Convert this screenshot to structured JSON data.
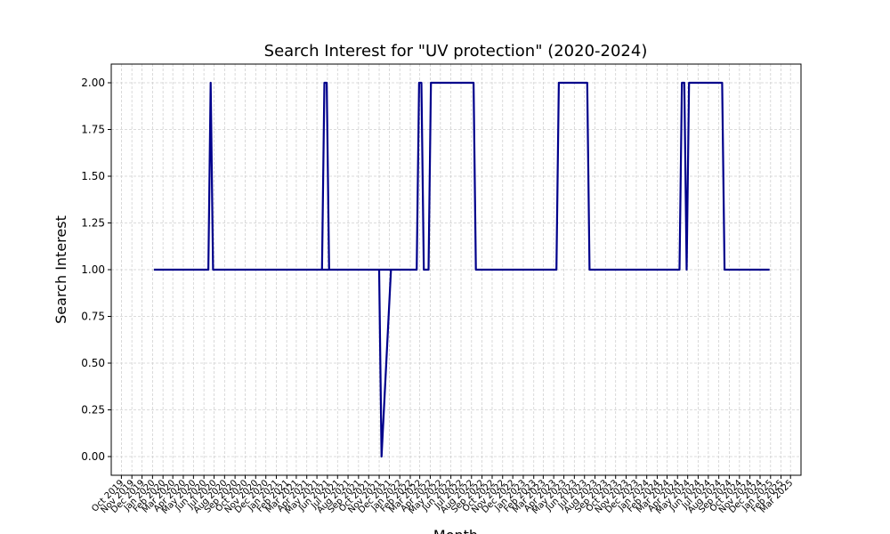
{
  "chart_data": {
    "type": "line",
    "title": "Search Interest for \"UV protection\" (2020-2024)",
    "xlabel": "Month",
    "ylabel": "Search Interest",
    "ylim": [
      -0.1,
      2.1
    ],
    "xlim": [
      "2019-09-01",
      "2025-04-01"
    ],
    "grid": true,
    "line_color": "#00008b",
    "y_ticks": [
      "0.00",
      "0.25",
      "0.50",
      "0.75",
      "1.00",
      "1.25",
      "1.50",
      "1.75",
      "2.00"
    ],
    "x_ticks": [
      "Oct 2019",
      "Nov 2019",
      "Dec 2019",
      "Jan 2020",
      "Feb 2020",
      "Mar 2020",
      "Apr 2020",
      "May 2020",
      "Jun 2020",
      "Jul 2020",
      "Aug 2020",
      "Sep 2020",
      "Oct 2020",
      "Nov 2020",
      "Dec 2020",
      "Jan 2021",
      "Feb 2021",
      "Mar 2021",
      "Apr 2021",
      "May 2021",
      "Jun 2021",
      "Jul 2021",
      "Aug 2021",
      "Sep 2021",
      "Oct 2021",
      "Nov 2021",
      "Dec 2021",
      "Jan 2022",
      "Feb 2022",
      "Mar 2022",
      "Apr 2022",
      "May 2022",
      "Jun 2022",
      "Jul 2022",
      "Aug 2022",
      "Sep 2022",
      "Oct 2022",
      "Nov 2022",
      "Dec 2022",
      "Jan 2023",
      "Feb 2023",
      "Mar 2023",
      "Apr 2023",
      "May 2023",
      "Jun 2023",
      "Jul 2023",
      "Aug 2023",
      "Sep 2023",
      "Oct 2023",
      "Nov 2023",
      "Dec 2023",
      "Jan 2024",
      "Feb 2024",
      "Mar 2024",
      "Apr 2024",
      "May 2024",
      "Jun 2024",
      "Jul 2024",
      "Aug 2024",
      "Sep 2024",
      "Oct 2024",
      "Nov 2024",
      "Dec 2024",
      "Jan 2025",
      "Feb 2025",
      "Mar 2025"
    ],
    "series": [
      {
        "x": [
          "2020-01-05",
          "2020-06-14",
          "2020-06-21",
          "2020-06-28",
          "2021-11-01",
          "2021-11-08",
          "2021-12-06",
          "2021-12-13",
          "2021-05-16",
          "2021-05-23",
          "2021-05-30",
          "2021-06-06",
          "2022-02-20",
          "2022-02-27",
          "2022-03-06",
          "2022-03-13",
          "2022-03-20",
          "2022-03-27",
          "2022-04-03",
          "2022-08-07",
          "2022-08-14",
          "2023-04-09",
          "2023-04-16",
          "2023-07-09",
          "2023-07-16",
          "2024-04-07",
          "2024-04-14",
          "2024-04-21",
          "2024-04-28",
          "2024-05-05",
          "2024-08-11",
          "2024-08-18",
          "2024-12-29"
        ],
        "y": [
          1,
          1,
          2,
          1,
          1,
          0,
          1,
          1,
          1,
          2,
          2,
          1,
          1,
          2,
          2,
          1,
          1,
          1,
          2,
          2,
          1,
          1,
          2,
          2,
          1,
          1,
          2,
          2,
          1,
          2,
          2,
          1,
          1
        ]
      }
    ]
  }
}
